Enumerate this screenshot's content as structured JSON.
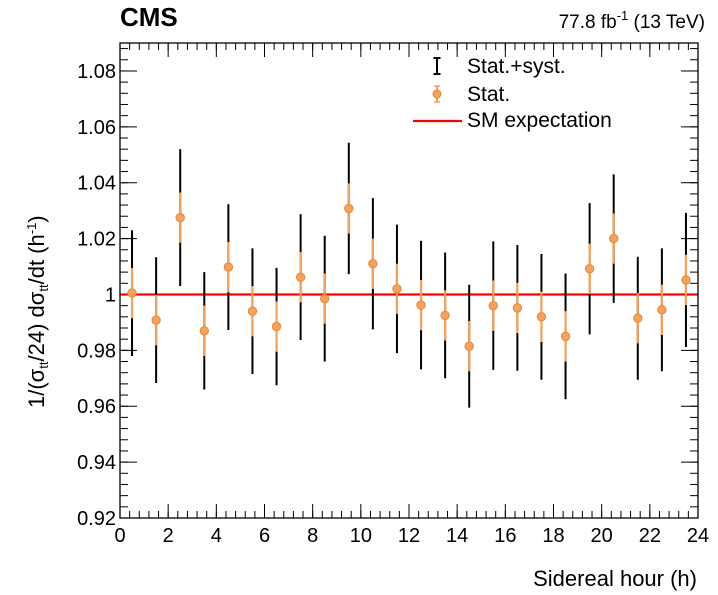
{
  "header": {
    "experiment": "CMS",
    "lumi_value": "77.8 fb",
    "lumi_exp": "-1",
    "energy": " (13 TeV)"
  },
  "chart_data": {
    "type": "scatter",
    "title": "",
    "xlabel": "Sidereal hour (h)",
    "ylabel_parts": [
      "1/(σ",
      "t",
      "t",
      "/24) dσ",
      "t",
      "t",
      "/dt (h",
      "-1",
      ")"
    ],
    "xlim": [
      0,
      24
    ],
    "ylim": [
      0.92,
      1.09
    ],
    "x_ticks": [
      0,
      2,
      4,
      6,
      8,
      10,
      12,
      14,
      16,
      18,
      20,
      22,
      24
    ],
    "x_tick_labels": [
      "0",
      "2",
      "4",
      "6",
      "8",
      "10",
      "12",
      "14",
      "16",
      "18",
      "20",
      "22",
      "24"
    ],
    "y_ticks": [
      0.92,
      0.94,
      0.96,
      0.98,
      1.0,
      1.02,
      1.04,
      1.06,
      1.08
    ],
    "y_tick_labels": [
      "0.92",
      "0.94",
      "0.96",
      "0.98",
      "1",
      "1.02",
      "1.04",
      "1.06",
      "1.08"
    ],
    "grid": false,
    "legend": {
      "position": "top-right",
      "entries": [
        {
          "label": "Stat.+syst.",
          "kind": "errorbar",
          "color": "#000000"
        },
        {
          "label": "Stat.",
          "kind": "marker",
          "color": "#f5a35c"
        },
        {
          "label": "SM expectation",
          "kind": "line",
          "color": "#ff0000"
        }
      ]
    },
    "sm_expectation": 1.0,
    "colors": {
      "marker_fill": "#f5a35c",
      "marker_stroke": "#e08a3a",
      "stat_error": "#f5a35c",
      "total_error": "#000000",
      "sm_line": "#ff0000"
    },
    "series": [
      {
        "name": "Stat.",
        "x": [
          0.5,
          1.5,
          2.5,
          3.5,
          4.5,
          5.5,
          6.5,
          7.5,
          8.5,
          9.5,
          10.5,
          11.5,
          12.5,
          13.5,
          14.5,
          15.5,
          16.5,
          17.5,
          18.5,
          19.5,
          20.5,
          21.5,
          22.5,
          23.5
        ],
        "y": [
          1.0005,
          0.9908,
          1.0275,
          0.987,
          1.0098,
          0.994,
          0.9885,
          1.0062,
          0.9985,
          1.0308,
          1.011,
          1.002,
          0.9962,
          0.9925,
          0.9815,
          0.996,
          0.9952,
          0.992,
          0.985,
          1.0092,
          1.02,
          0.9915,
          0.9945,
          1.0052
        ],
        "stat_err": [
          0.009,
          0.009,
          0.009,
          0.009,
          0.009,
          0.009,
          0.009,
          0.009,
          0.009,
          0.009,
          0.009,
          0.009,
          0.009,
          0.009,
          0.009,
          0.009,
          0.009,
          0.009,
          0.009,
          0.009,
          0.009,
          0.009,
          0.009,
          0.009
        ],
        "total_err": [
          0.0225,
          0.0225,
          0.0245,
          0.021,
          0.0225,
          0.0225,
          0.021,
          0.0225,
          0.0225,
          0.0235,
          0.0235,
          0.023,
          0.023,
          0.0225,
          0.022,
          0.023,
          0.0225,
          0.0225,
          0.0225,
          0.0235,
          0.023,
          0.022,
          0.022,
          0.024
        ]
      }
    ]
  }
}
